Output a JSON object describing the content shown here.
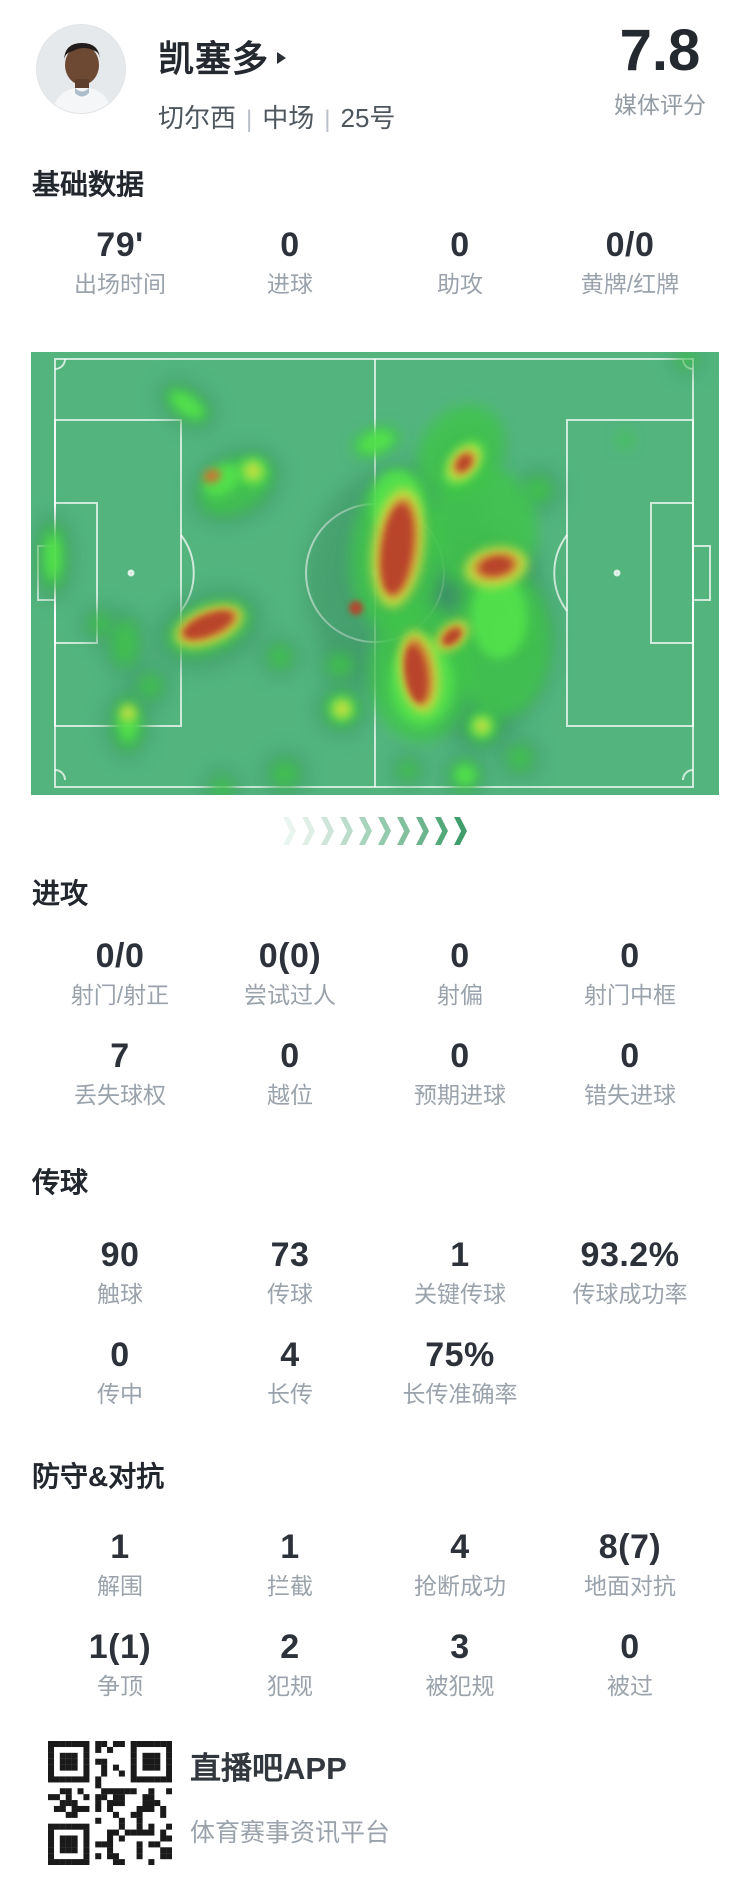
{
  "header": {
    "player_name": "凯塞多",
    "team": "切尔西",
    "separator": "|",
    "position": "中场",
    "shirt_number": "25号",
    "rating": "7.8",
    "rating_label": "媒体评分"
  },
  "sections": {
    "basic": {
      "title": "基础数据",
      "rows": [
        [
          {
            "value": "79'",
            "label": "出场时间"
          },
          {
            "value": "0",
            "label": "进球"
          },
          {
            "value": "0",
            "label": "助攻"
          },
          {
            "value": "0/0",
            "label": "黄牌/红牌"
          }
        ]
      ]
    },
    "attack": {
      "title": "进攻",
      "rows": [
        [
          {
            "value": "0/0",
            "label": "射门/射正"
          },
          {
            "value": "0(0)",
            "label": "尝试过人"
          },
          {
            "value": "0",
            "label": "射偏"
          },
          {
            "value": "0",
            "label": "射门中框"
          }
        ],
        [
          {
            "value": "7",
            "label": "丢失球权"
          },
          {
            "value": "0",
            "label": "越位"
          },
          {
            "value": "0",
            "label": "预期进球"
          },
          {
            "value": "0",
            "label": "错失进球"
          }
        ]
      ]
    },
    "passing": {
      "title": "传球",
      "rows": [
        [
          {
            "value": "90",
            "label": "触球"
          },
          {
            "value": "73",
            "label": "传球"
          },
          {
            "value": "1",
            "label": "关键传球"
          },
          {
            "value": "93.2%",
            "label": "传球成功率"
          }
        ],
        [
          {
            "value": "0",
            "label": "传中"
          },
          {
            "value": "4",
            "label": "长传"
          },
          {
            "value": "75%",
            "label": "长传准确率"
          }
        ]
      ]
    },
    "defense": {
      "title": "防守&对抗",
      "rows": [
        [
          {
            "value": "1",
            "label": "解围"
          },
          {
            "value": "1",
            "label": "拦截"
          },
          {
            "value": "4",
            "label": "抢断成功"
          },
          {
            "value": "8(7)",
            "label": "地面对抗"
          }
        ],
        [
          {
            "value": "1(1)",
            "label": "争顶"
          },
          {
            "value": "2",
            "label": "犯规"
          },
          {
            "value": "3",
            "label": "被犯规"
          },
          {
            "value": "0",
            "label": "被过"
          }
        ]
      ]
    }
  },
  "separator_deco": {
    "count": 10,
    "color_rgb": "63,158,107"
  },
  "heatmap": {
    "pitch_color": "#53b47e",
    "line_color": "rgba(255,255,255,0.72)",
    "palette": {
      "halo": "#37895e",
      "green": "#3fc649",
      "bright": "#55e54c",
      "yellow": "#cedd3f",
      "orange": "#cd7231",
      "red": "#b8432c"
    },
    "blobs": {
      "halo": [
        [
          375,
          230,
          100,
          118,
          0
        ],
        [
          442,
          285,
          82,
          102,
          0
        ],
        [
          178,
          277,
          56,
          38,
          -20
        ],
        [
          205,
          134,
          48,
          34,
          -30
        ],
        [
          156,
          53,
          20,
          32,
          -55
        ],
        [
          22,
          205,
          20,
          44,
          0
        ],
        [
          96,
          372,
          22,
          34,
          0
        ],
        [
          94,
          292,
          20,
          32,
          0
        ],
        [
          432,
          110,
          30,
          42,
          40
        ],
        [
          465,
          215,
          42,
          28,
          -10
        ],
        [
          508,
          138,
          22,
          22,
          0
        ],
        [
          311,
          357,
          26,
          26,
          0
        ],
        [
          254,
          422,
          22,
          22,
          0
        ],
        [
          451,
          374,
          25,
          25,
          0
        ],
        [
          434,
          423,
          21,
          21,
          0
        ],
        [
          484,
          281,
          23,
          23,
          0
        ],
        [
          119,
          334,
          20,
          20,
          0
        ],
        [
          249,
          305,
          19,
          19,
          0
        ],
        [
          69,
          272,
          18,
          18,
          0
        ],
        [
          191,
          436,
          18,
          18,
          0
        ],
        [
          377,
          418,
          16,
          16,
          0
        ],
        [
          489,
          406,
          20,
          20,
          0
        ],
        [
          309,
          313,
          19,
          19,
          0
        ],
        [
          656,
          8,
          14,
          14,
          0
        ]
      ],
      "green": [
        [
          156,
          53,
          13,
          25,
          -55
        ],
        [
          205,
          134,
          40,
          26,
          -30
        ],
        [
          22,
          205,
          13,
          34,
          0
        ],
        [
          69,
          272,
          11,
          11,
          0
        ],
        [
          94,
          291,
          14,
          24,
          0
        ],
        [
          119,
          334,
          12,
          12,
          0
        ],
        [
          97,
          372,
          15,
          27,
          0
        ],
        [
          178,
          276,
          44,
          25,
          -22
        ],
        [
          249,
          305,
          12,
          12,
          0
        ],
        [
          311,
          357,
          18,
          18,
          0
        ],
        [
          191,
          436,
          11,
          11,
          0
        ],
        [
          254,
          422,
          14,
          14,
          0
        ],
        [
          309,
          313,
          13,
          13,
          0
        ],
        [
          366,
          200,
          46,
          82,
          5
        ],
        [
          390,
          320,
          52,
          70,
          0
        ],
        [
          452,
          178,
          54,
          64,
          0
        ],
        [
          470,
          290,
          50,
          76,
          0
        ],
        [
          430,
          100,
          40,
          50,
          35
        ],
        [
          345,
          90,
          25,
          14,
          -20
        ],
        [
          507,
          138,
          14,
          14,
          0
        ],
        [
          484,
          281,
          15,
          15,
          0
        ],
        [
          489,
          406,
          13,
          13,
          0
        ],
        [
          451,
          374,
          18,
          18,
          0
        ],
        [
          377,
          418,
          10,
          10,
          0
        ],
        [
          434,
          423,
          15,
          15,
          0
        ],
        [
          656,
          8,
          9,
          9,
          0
        ],
        [
          594,
          88,
          8,
          8,
          0
        ]
      ],
      "bright": [
        [
          156,
          53,
          9,
          19,
          -55
        ],
        [
          222,
          120,
          14,
          14,
          0
        ],
        [
          433,
          111,
          14,
          26,
          40
        ],
        [
          345,
          90,
          18,
          10,
          -20
        ],
        [
          434,
          423,
          10,
          10,
          0
        ],
        [
          191,
          128,
          20,
          14,
          -35
        ],
        [
          366,
          152,
          26,
          34,
          0
        ],
        [
          391,
          330,
          32,
          44,
          0
        ],
        [
          468,
          265,
          28,
          42,
          0
        ],
        [
          451,
          374,
          11,
          11,
          0
        ],
        [
          311,
          357,
          11,
          11,
          0
        ],
        [
          97,
          372,
          9,
          16,
          0
        ],
        [
          22,
          205,
          8,
          22,
          0
        ]
      ],
      "yellow": [
        [
          367,
          196,
          26,
          60,
          7
        ],
        [
          388,
          320,
          20,
          42,
          -8
        ],
        [
          465,
          215,
          32,
          20,
          -10
        ],
        [
          433,
          111,
          13,
          21,
          40
        ],
        [
          421,
          284,
          20,
          12,
          -40
        ],
        [
          178,
          274,
          36,
          18,
          -22
        ],
        [
          97,
          361,
          8,
          8,
          0
        ],
        [
          311,
          357,
          9,
          9,
          0
        ],
        [
          451,
          374,
          8,
          8,
          0
        ],
        [
          222,
          119,
          9,
          9,
          0
        ]
      ],
      "orange": [
        [
          367,
          196,
          19,
          50,
          7
        ],
        [
          387,
          320,
          14,
          34,
          -8
        ],
        [
          465,
          214,
          22,
          13,
          -10
        ],
        [
          433,
          111,
          9,
          13,
          40
        ],
        [
          421,
          284,
          13,
          8,
          -40
        ],
        [
          178,
          273,
          30,
          13,
          -22
        ],
        [
          181,
          124,
          9,
          7,
          -20
        ]
      ],
      "red": [
        [
          366,
          197,
          14,
          44,
          7
        ],
        [
          385,
          322,
          10,
          28,
          -8
        ],
        [
          465,
          214,
          15,
          8,
          -10
        ],
        [
          421,
          285,
          10,
          5,
          -40
        ],
        [
          177,
          273,
          25,
          9,
          -22
        ],
        [
          325,
          256,
          7,
          7,
          0
        ],
        [
          433,
          111,
          5,
          8,
          40
        ]
      ]
    }
  },
  "footer": {
    "app_name": "直播吧APP",
    "tagline": "体育赛事资讯平台",
    "qr_icon": "qr-code"
  },
  "colors": {
    "accent_green": "#3f9e6b",
    "value_text": "#2c313a",
    "label_text": "#9aa2ac",
    "pitch_green": "#53b47e"
  }
}
